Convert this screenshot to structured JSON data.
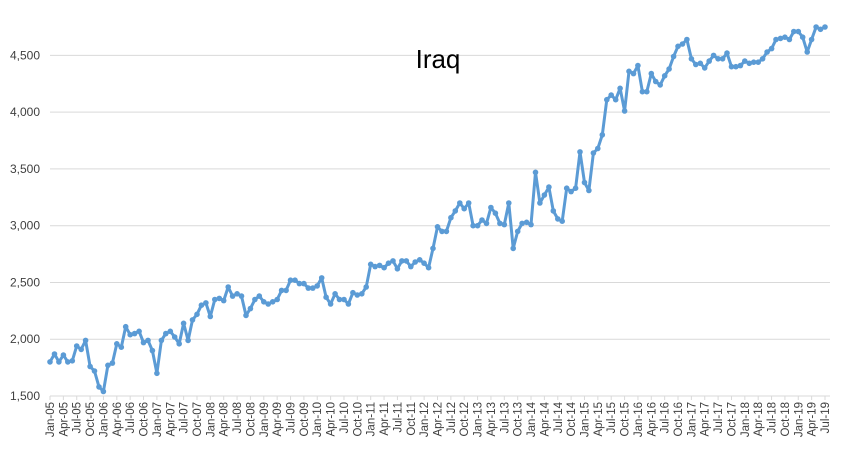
{
  "chart_data": {
    "type": "line",
    "title": "Iraq",
    "xlabel": "",
    "ylabel": "",
    "ylim": [
      1500,
      4750
    ],
    "yticks": [
      1500,
      2000,
      2500,
      3000,
      3500,
      4000,
      4500
    ],
    "ytick_labels": [
      "1,500",
      "2,000",
      "2,500",
      "3,000",
      "3,500",
      "4,000",
      "4,500"
    ],
    "grid": "horizontal",
    "legend": "none",
    "colors": {
      "series": "#5B9BD5",
      "grid": "#D9D9D9",
      "text": "#404040"
    },
    "xtick_labels": [
      "Jan-05",
      "Apr-05",
      "Jul-05",
      "Oct-05",
      "Jan-06",
      "Apr-06",
      "Jul-06",
      "Oct-06",
      "Jan-07",
      "Apr-07",
      "Jul-07",
      "Oct-07",
      "Jan-08",
      "Apr-08",
      "Jul-08",
      "Oct-08",
      "Jan-09",
      "Apr-09",
      "Jul-09",
      "Oct-09",
      "Jan-10",
      "Apr-10",
      "Jul-10",
      "Oct-10",
      "Jan-11",
      "Apr-11",
      "Jul-11",
      "Oct-11",
      "Jan-12",
      "Apr-12",
      "Jul-12",
      "Oct-12",
      "Jan-13",
      "Apr-13",
      "Jul-13",
      "Oct-13",
      "Jan-14",
      "Apr-14",
      "Jul-14",
      "Oct-14",
      "Jan-15",
      "Apr-15",
      "Jul-15",
      "Oct-15",
      "Jan-16",
      "Apr-16",
      "Jul-16",
      "Oct-16",
      "Jan-17",
      "Apr-17",
      "Jul-17",
      "Oct-17",
      "Jan-18",
      "Apr-18",
      "Jul-18",
      "Oct-18",
      "Jan-19",
      "Apr-19",
      "Jul-19"
    ],
    "series": [
      {
        "start": "Jan-05",
        "frequency": "monthly",
        "values": [
          1800,
          1870,
          1800,
          1860,
          1800,
          1810,
          1940,
          1910,
          1990,
          1760,
          1720,
          1580,
          1540,
          1770,
          1790,
          1960,
          1930,
          2110,
          2040,
          2050,
          2070,
          1970,
          1990,
          1900,
          1700,
          1990,
          2050,
          2070,
          2020,
          1960,
          2140,
          1990,
          2170,
          2220,
          2300,
          2320,
          2200,
          2350,
          2360,
          2340,
          2460,
          2380,
          2400,
          2380,
          2210,
          2270,
          2350,
          2380,
          2330,
          2310,
          2330,
          2350,
          2430,
          2430,
          2520,
          2520,
          2490,
          2490,
          2450,
          2450,
          2470,
          2540,
          2370,
          2310,
          2400,
          2350,
          2350,
          2310,
          2410,
          2390,
          2400,
          2460,
          2660,
          2640,
          2650,
          2630,
          2670,
          2690,
          2620,
          2690,
          2690,
          2640,
          2680,
          2700,
          2670,
          2630,
          2800,
          2990,
          2950,
          2950,
          3070,
          3130,
          3200,
          3150,
          3200,
          3000,
          3000,
          3050,
          3020,
          3160,
          3110,
          3020,
          3010,
          3200,
          2800,
          2950,
          3020,
          3030,
          3010,
          3470,
          3200,
          3270,
          3340,
          3130,
          3060,
          3040,
          3330,
          3300,
          3330,
          3650,
          3380,
          3310,
          3640,
          3680,
          3800,
          4110,
          4150,
          4110,
          4210,
          4010,
          4360,
          4340,
          4410,
          4180,
          4180,
          4340,
          4270,
          4240,
          4320,
          4380,
          4490,
          4580,
          4600,
          4640,
          4470,
          4420,
          4430,
          4390,
          4450,
          4500,
          4470,
          4470,
          4520,
          4400,
          4400,
          4410,
          4450,
          4430,
          4440,
          4440,
          4470,
          4530,
          4560,
          4640,
          4650,
          4660,
          4640,
          4710,
          4710,
          4660,
          4530,
          4640,
          4750,
          4730,
          4750
        ]
      }
    ]
  }
}
